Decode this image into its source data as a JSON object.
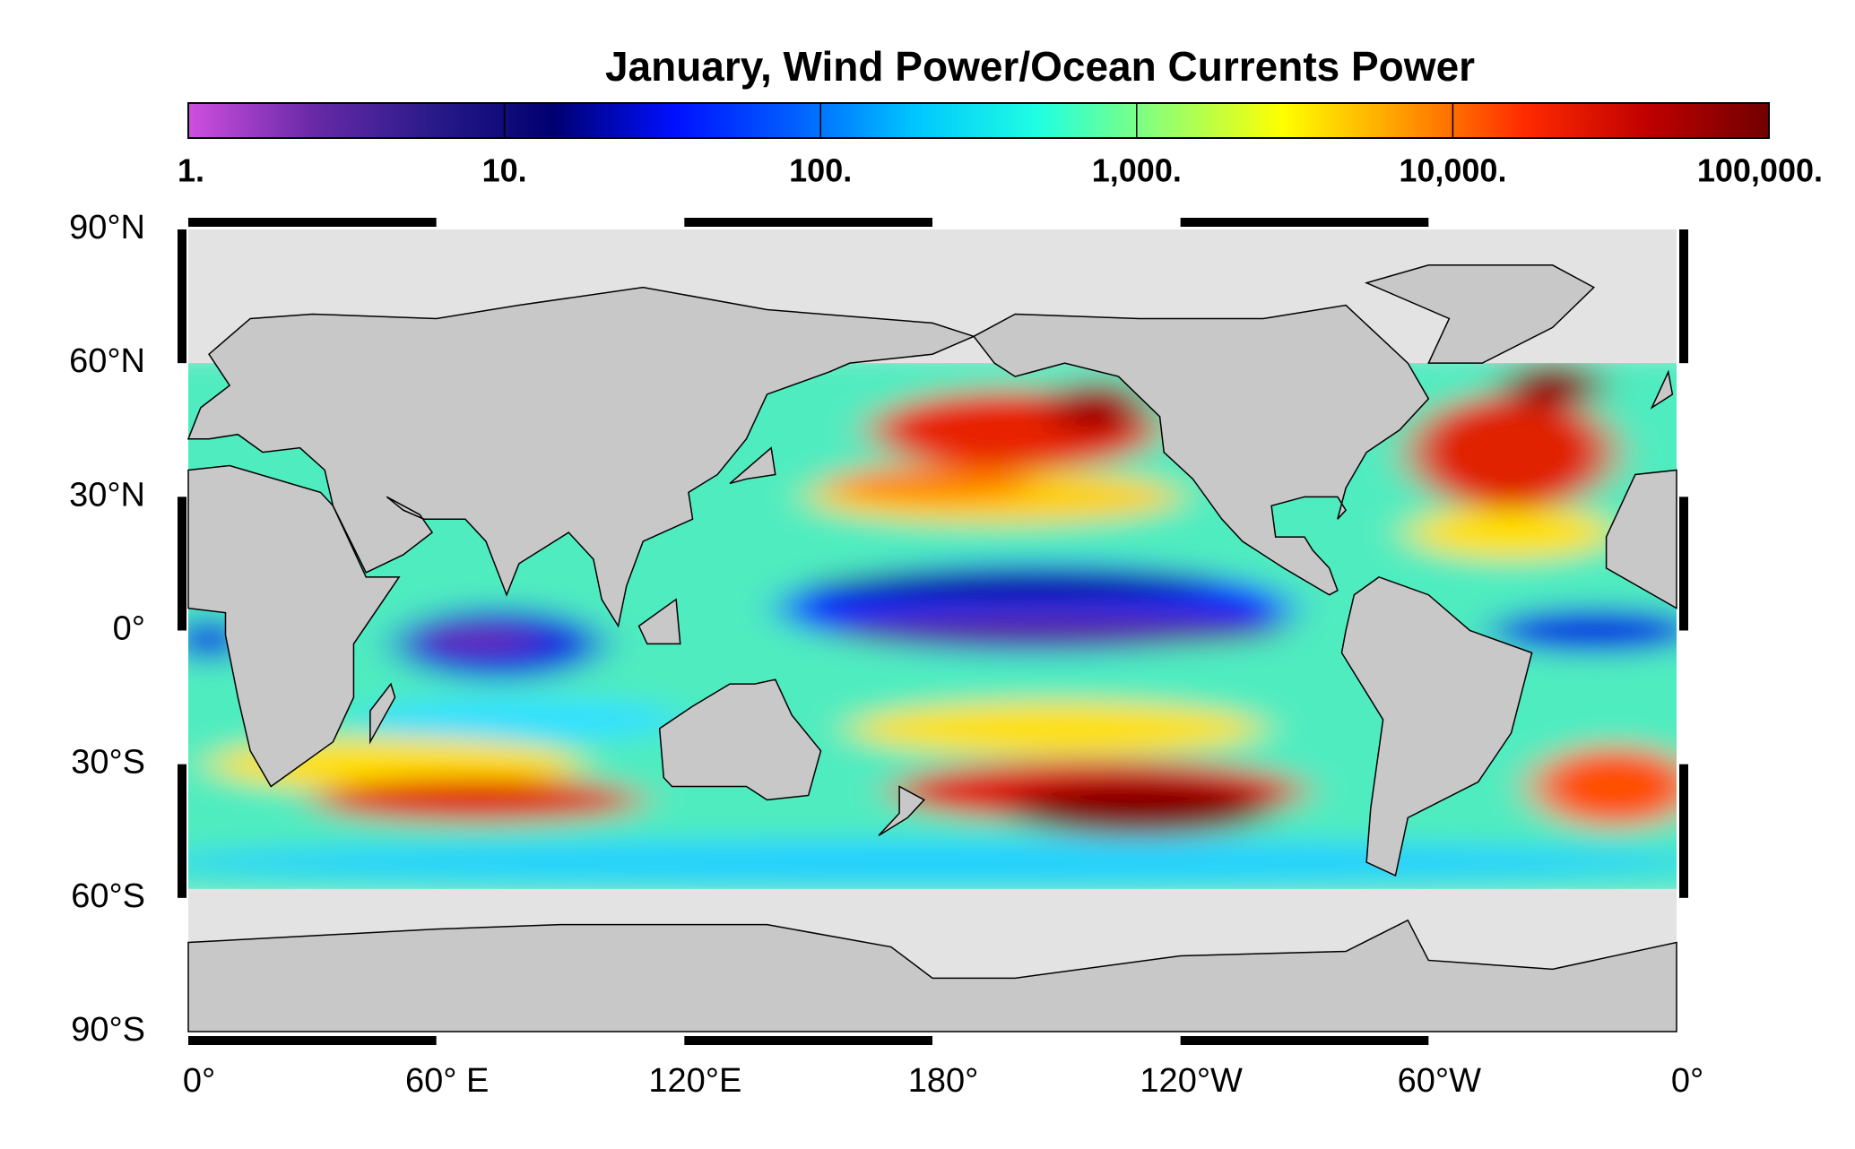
{
  "title": "January, Wind Power/Ocean Currents Power",
  "colorbar": {
    "scale": "log",
    "lim": [
      1,
      100000
    ],
    "ticks": [
      {
        "value": 1,
        "label": "1."
      },
      {
        "value": 10,
        "label": "10."
      },
      {
        "value": 100,
        "label": "100."
      },
      {
        "value": 1000,
        "label": "1,000."
      },
      {
        "value": 10000,
        "label": "10,000."
      },
      {
        "value": 100000,
        "label": "100,000."
      }
    ],
    "colors": [
      "#cf4fe0",
      "#6a2aa8",
      "#2a1a8a",
      "#000070",
      "#0010ff",
      "#0060ff",
      "#00c8ff",
      "#20ffe0",
      "#90ff70",
      "#ffff00",
      "#ff9a00",
      "#ff2a00",
      "#c00000",
      "#700000"
    ]
  },
  "map": {
    "lat_ticks": [
      {
        "value": 90,
        "label": "90°N"
      },
      {
        "value": 60,
        "label": "60°N"
      },
      {
        "value": 30,
        "label": "30°N"
      },
      {
        "value": 0,
        "label": "0°"
      },
      {
        "value": -30,
        "label": "30°S"
      },
      {
        "value": -60,
        "label": "60°S"
      },
      {
        "value": -90,
        "label": "90°S"
      }
    ],
    "lon_ticks": [
      {
        "value": 0,
        "label": "0°"
      },
      {
        "value": 60,
        "label": "60° E"
      },
      {
        "value": 120,
        "label": "120°E"
      },
      {
        "value": 180,
        "label": "180°"
      },
      {
        "value": 240,
        "label": "120°W"
      },
      {
        "value": 300,
        "label": "60°W"
      },
      {
        "value": 360,
        "label": "0°"
      }
    ]
  }
}
